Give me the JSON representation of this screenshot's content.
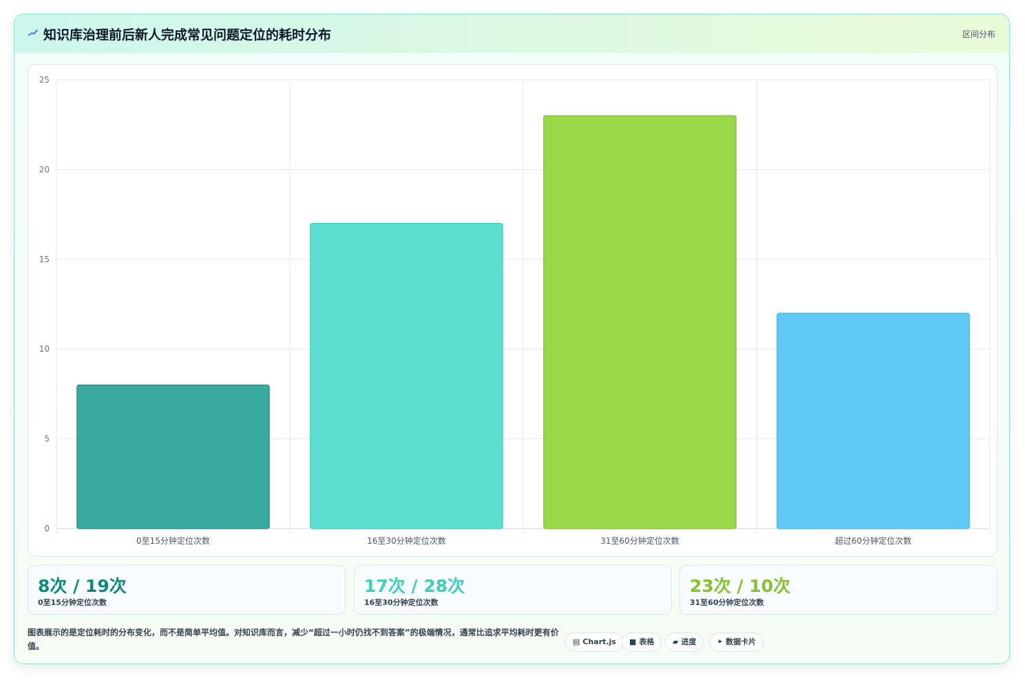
{
  "header": {
    "title": "知识库治理前后新人完成常见问题定位的耗时分布",
    "tag": "区间分布"
  },
  "chart_data": {
    "type": "bar",
    "categories": [
      "0至15分钟定位次数",
      "16至30分钟定位次数",
      "31至60分钟定位次数",
      "超过60分钟定位次数"
    ],
    "values": [
      8,
      17,
      23,
      12
    ],
    "colors": [
      "#3aa99e",
      "#5cdfce",
      "#9ad84a",
      "#60c9f7"
    ],
    "border_colors": [
      "#1f8a7f",
      "#3fcab6",
      "#7cbf2a",
      "#3db3ea"
    ],
    "ylim": [
      0,
      25
    ],
    "yticks": [
      0,
      5,
      10,
      15,
      20,
      25
    ],
    "grid": true,
    "title": "",
    "xlabel": "",
    "ylabel": ""
  },
  "stats": [
    {
      "value": "8次 / 19次",
      "label": "0至15分钟定位次数",
      "color": "#0f8a7e"
    },
    {
      "value": "17次 / 28次",
      "label": "16至30分钟定位次数",
      "color": "#3dd0bd"
    },
    {
      "value": "23次 / 10次",
      "label": "31至60分钟定位次数",
      "color": "#84c42a"
    }
  ],
  "footer": {
    "note": "图表展示的是定位耗时的分布变化，而不是简单平均值。对知识库而言，减少“超过一小时仍找不到答案”的极端情况，通常比追求平均耗时更有价值。"
  },
  "chips": [
    {
      "label": "Chart.js",
      "icon": "chart-icon",
      "glyph": "▤"
    },
    {
      "label": "表格",
      "icon": "table-icon",
      "glyph": "■"
    },
    {
      "label": "进度",
      "icon": "progress-icon",
      "glyph": "▰"
    },
    {
      "label": "数据卡片",
      "icon": "sparkle-icon",
      "glyph": "✦"
    }
  ]
}
